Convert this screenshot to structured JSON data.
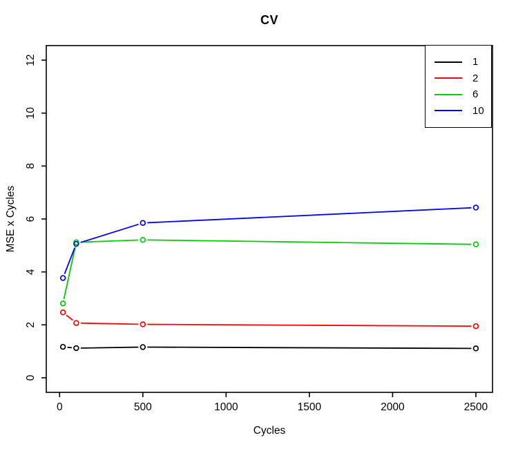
{
  "title": "CV",
  "axes": {
    "xlabel": "Cycles",
    "ylabel": "MSE x Cycles"
  },
  "legend": {
    "entries": [
      "1",
      "2",
      "6",
      "10"
    ]
  },
  "colors": {
    "series_1": "#000000",
    "series_2": "#FF0000",
    "series_6": "#00CD00",
    "series_10": "#0000FF",
    "axis": "#000000",
    "background": "#FFFFFF"
  },
  "chart_data": {
    "type": "line",
    "title": "CV",
    "xlabel": "Cycles",
    "ylabel": "MSE x Cycles",
    "marker": "open-circle",
    "line_type": "b",
    "grid": false,
    "legend_position": "top-right",
    "x": [
      20,
      100,
      500,
      2500
    ],
    "series": [
      {
        "name": "1",
        "color": "#000000",
        "values": [
          1.17,
          1.12,
          1.16,
          1.11
        ]
      },
      {
        "name": "2",
        "color": "#FF0000",
        "values": [
          2.47,
          2.07,
          2.02,
          1.95
        ]
      },
      {
        "name": "6",
        "color": "#00CD00",
        "values": [
          2.81,
          5.12,
          5.21,
          5.04
        ]
      },
      {
        "name": "10",
        "color": "#0000FF",
        "values": [
          3.77,
          5.06,
          5.85,
          6.43
        ]
      }
    ],
    "x_ticks": [
      0,
      500,
      1000,
      1500,
      2000,
      2500
    ],
    "y_ticks": [
      0,
      2,
      4,
      6,
      8,
      10,
      12
    ],
    "xlim": [
      -80,
      2600
    ],
    "ylim": [
      -0.55,
      12.55
    ]
  }
}
